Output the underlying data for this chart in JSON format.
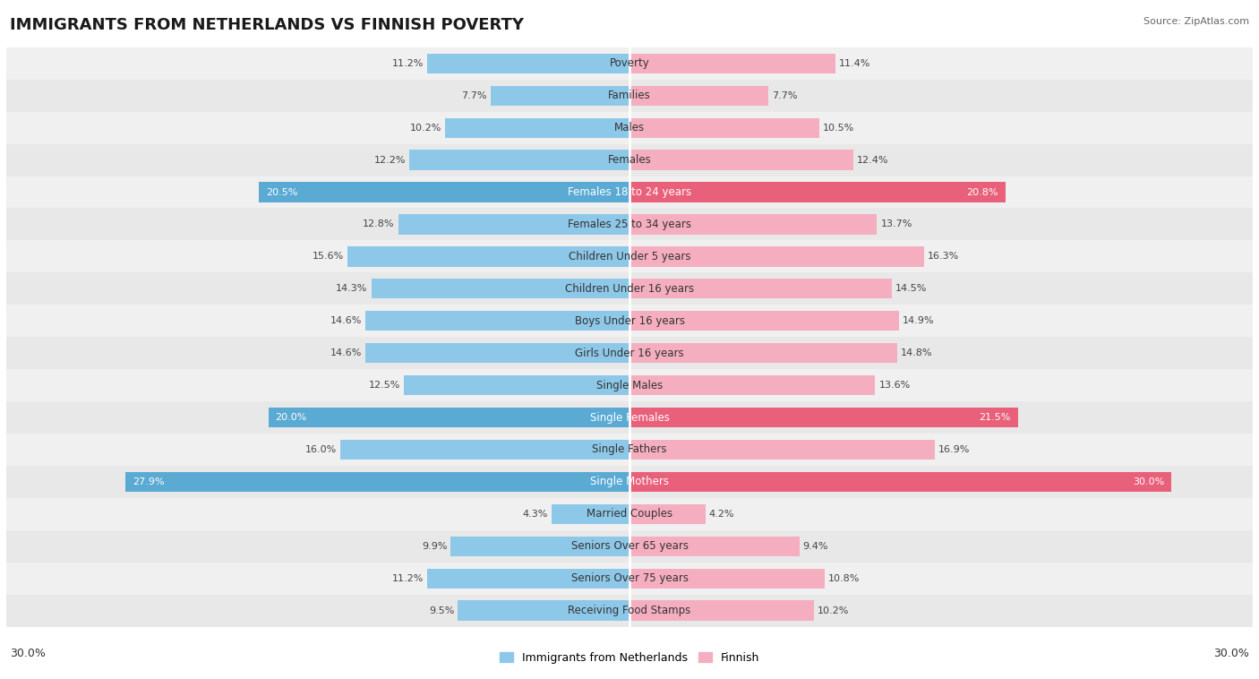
{
  "title": "IMMIGRANTS FROM NETHERLANDS VS FINNISH POVERTY",
  "source": "Source: ZipAtlas.com",
  "categories": [
    "Poverty",
    "Families",
    "Males",
    "Females",
    "Females 18 to 24 years",
    "Females 25 to 34 years",
    "Children Under 5 years",
    "Children Under 16 years",
    "Boys Under 16 years",
    "Girls Under 16 years",
    "Single Males",
    "Single Females",
    "Single Fathers",
    "Single Mothers",
    "Married Couples",
    "Seniors Over 65 years",
    "Seniors Over 75 years",
    "Receiving Food Stamps"
  ],
  "left_values": [
    11.2,
    7.7,
    10.2,
    12.2,
    20.5,
    12.8,
    15.6,
    14.3,
    14.6,
    14.6,
    12.5,
    20.0,
    16.0,
    27.9,
    4.3,
    9.9,
    11.2,
    9.5
  ],
  "right_values": [
    11.4,
    7.7,
    10.5,
    12.4,
    20.8,
    13.7,
    16.3,
    14.5,
    14.9,
    14.8,
    13.6,
    21.5,
    16.9,
    30.0,
    4.2,
    9.4,
    10.8,
    10.2
  ],
  "left_color_normal": "#8ec8e8",
  "left_color_highlight": "#5aaad4",
  "right_color_normal": "#f5aec0",
  "right_color_highlight": "#e8607a",
  "highlight_indices": [
    4,
    11,
    13
  ],
  "max_value": 30.0,
  "legend_left": "Immigrants from Netherlands",
  "legend_right": "Finnish",
  "bg_row_even": "#f0f0f0",
  "bg_row_odd": "#e8e8e8",
  "title_fontsize": 13,
  "label_fontsize": 8.5,
  "value_fontsize": 8
}
